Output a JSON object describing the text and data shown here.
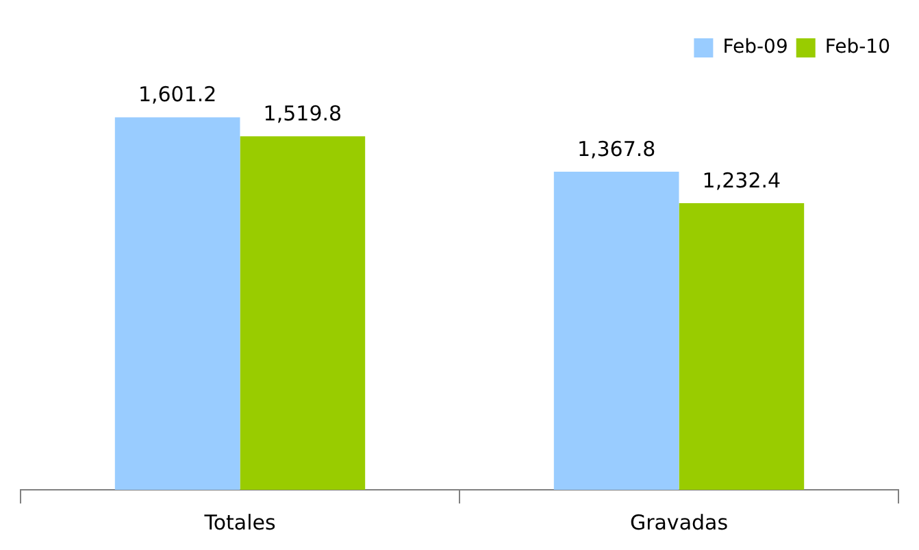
{
  "chart_data": {
    "type": "bar",
    "categories": [
      "Totales",
      "Gravadas"
    ],
    "series": [
      {
        "name": "Feb-09",
        "color": "#99ccff",
        "values": [
          1601.2,
          1367.8
        ],
        "value_labels": [
          "1,601.2",
          "1,367.8"
        ]
      },
      {
        "name": "Feb-10",
        "color": "#99cc00",
        "values": [
          1519.8,
          1232.4
        ],
        "value_labels": [
          "1,519.8",
          "1,232.4"
        ]
      }
    ],
    "legend": "top right",
    "grid": false,
    "tick_labels": "x"
  }
}
